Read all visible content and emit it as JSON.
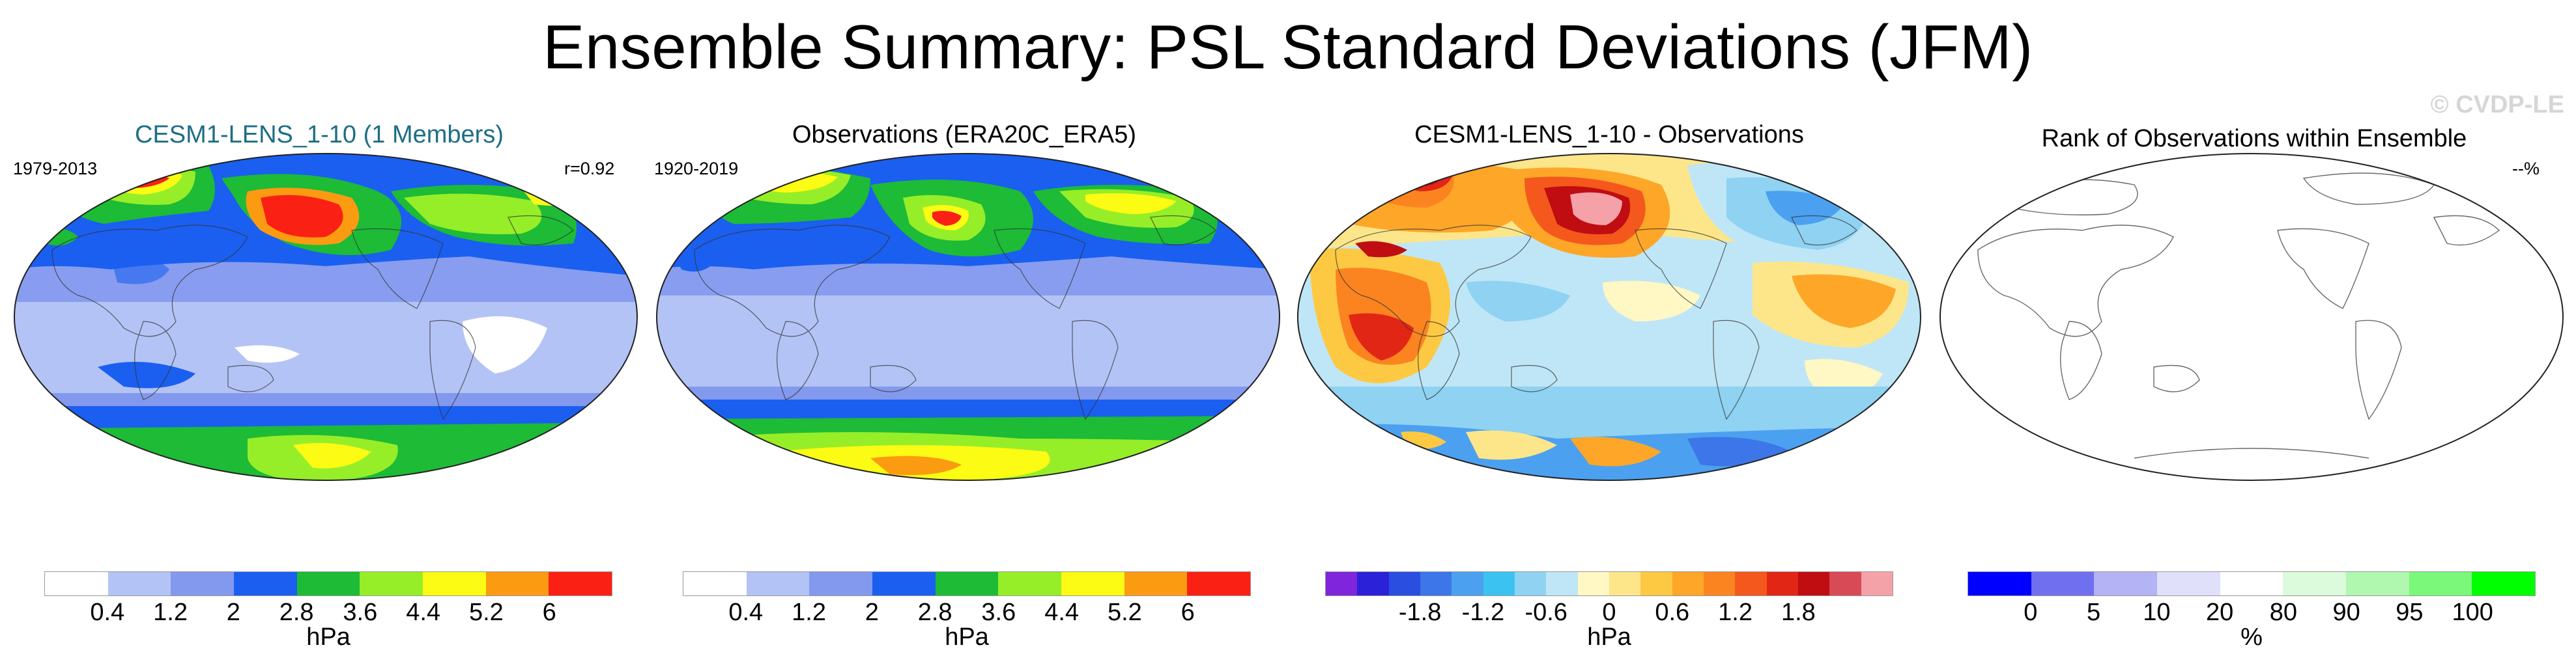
{
  "title": "Ensemble Summary: PSL Standard Deviations (JFM)",
  "watermark": "© CVDP-LE",
  "panels": [
    {
      "title": "CESM1-LENS_1-10 (1 Members)",
      "left_label": "1979-2013",
      "right_label": "r=0.92",
      "colorbar": {
        "colors": [
          "#ffffff",
          "#b3c3f5",
          "#8399ee",
          "#1a5ff0",
          "#1dbb36",
          "#96ee28",
          "#fbfb14",
          "#fb9b12",
          "#fa2014"
        ],
        "ticks": [
          "0.4",
          "1.2",
          "2",
          "2.8",
          "3.6",
          "4.4",
          "5.2",
          "6"
        ],
        "unit": "hPa"
      }
    },
    {
      "title": "Observations (ERA20C_ERA5)",
      "left_label": "1920-2019",
      "right_label": "",
      "colorbar": {
        "colors": [
          "#ffffff",
          "#b3c3f5",
          "#8399ee",
          "#1a5ff0",
          "#1dbb36",
          "#96ee28",
          "#fbfb14",
          "#fb9b12",
          "#fa2014"
        ],
        "ticks": [
          "0.4",
          "1.2",
          "2",
          "2.8",
          "3.6",
          "4.4",
          "5.2",
          "6"
        ],
        "unit": "hPa"
      }
    },
    {
      "title": "CESM1-LENS_1-10 - Observations",
      "left_label": "",
      "right_label": "",
      "colorbar": {
        "colors": [
          "#7f25db",
          "#2b21d8",
          "#2a4ee0",
          "#3c76e8",
          "#4ca0f0",
          "#3cc2f0",
          "#8fd2f2",
          "#bfe6f6",
          "#fff7c4",
          "#fde68a",
          "#fdc943",
          "#fda628",
          "#fb8420",
          "#f4581c",
          "#e12616",
          "#bf0d12",
          "#d84a56",
          "#f4a2a8"
        ],
        "ticks": [
          "-1.8",
          "-1.2",
          "-0.6",
          "0",
          "0.6",
          "1.2",
          "1.8"
        ],
        "unit": "hPa"
      }
    },
    {
      "title": "Rank of Observations within Ensemble",
      "left_label": "",
      "right_label": "--%",
      "colorbar": {
        "colors": [
          "#0000ff",
          "#6f6ff0",
          "#b3b3f5",
          "#e0e0fb",
          "#ffffff",
          "#dcfbdc",
          "#b0f8b0",
          "#7af87a",
          "#00ff00"
        ],
        "ticks": [
          "0",
          "5",
          "10",
          "20",
          "80",
          "90",
          "95",
          "100"
        ],
        "unit": "%"
      }
    }
  ]
}
